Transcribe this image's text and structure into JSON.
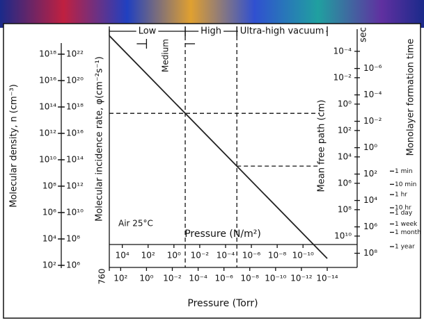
{
  "chart_data": {
    "type": "line",
    "annotation": "Air 25°C",
    "x": [
      760,
      1e-14
    ],
    "values": [
      2.5e+19,
      330
    ],
    "color": "#222222",
    "xlabel": "Pressure (Torr)",
    "xlim": [
      760,
      1e-14
    ],
    "xticks": [
      760,
      {
        "value": 100,
        "label": "10²"
      },
      {
        "value": 1,
        "label": "10⁰"
      },
      {
        "value": 0.01,
        "label": "10⁻²"
      },
      {
        "value": 0.0001,
        "label": "10⁻⁴"
      },
      {
        "value": 1e-06,
        "label": "10⁻⁶"
      },
      {
        "value": 1e-08,
        "label": "10⁻⁸"
      },
      {
        "value": 1e-10,
        "label": "10⁻¹⁰"
      },
      {
        "value": 1e-12,
        "label": "10⁻¹²"
      },
      {
        "value": 1e-14,
        "label": "10⁻¹⁴"
      }
    ],
    "x2label": "Pressure (N/m²)",
    "x2lim": [
      101325,
      1.33e-12
    ],
    "x2ticks": [
      {
        "value": 10000.0,
        "label": "10⁴"
      },
      {
        "value": 100,
        "label": "10²"
      },
      {
        "value": 1,
        "label": "10⁰"
      },
      {
        "value": 0.01,
        "label": "10⁻²"
      },
      {
        "value": 0.0001,
        "label": "10⁻⁴"
      },
      {
        "value": 1e-06,
        "label": "10⁻⁶"
      },
      {
        "value": 1e-08,
        "label": "10⁻⁸"
      },
      {
        "value": 1e-10,
        "label": "10⁻¹⁰"
      }
    ],
    "ylabel": "Molecular density, n (cm⁻³)",
    "ylim": [
      100,
      1e+20
    ],
    "yticks": [
      {
        "value": 100,
        "label": "10²"
      },
      {
        "value": 10000.0,
        "label": "10⁴"
      },
      {
        "value": 1000000.0,
        "label": "10⁶"
      },
      {
        "value": 100000000.0,
        "label": "10⁸"
      },
      {
        "value": 10000000000.0,
        "label": "10¹⁰"
      },
      {
        "value": 1000000000000.0,
        "label": "10¹²"
      },
      {
        "value": 100000000000000.0,
        "label": "10¹⁴"
      },
      {
        "value": 1e+16,
        "label": "10¹⁶"
      },
      {
        "value": 1e+18,
        "label": "10¹⁸"
      }
    ],
    "y_axes": [
      {
        "label": "Molecular incidence rate, φ(cm⁻²s⁻¹)",
        "lim": [
          1000000.0,
          1e+24
        ],
        "ticks": [
          {
            "value": 1000000.0,
            "label": "10⁶"
          },
          {
            "value": 100000000.0,
            "label": "10⁸"
          },
          {
            "value": 10000000000.0,
            "label": "10¹⁰"
          },
          {
            "value": 1000000000000.0,
            "label": "10¹²"
          },
          {
            "value": 100000000000000.0,
            "label": "10¹⁴"
          },
          {
            "value": 1e+16,
            "label": "10¹⁶"
          },
          {
            "value": 1e+18,
            "label": "10¹⁸"
          },
          {
            "value": 1e+20,
            "label": "10²⁰"
          },
          {
            "value": 1e+22,
            "label": "10²²"
          }
        ]
      },
      {
        "label": "Mean free path (cm)",
        "lim": [
          1650000000000.0,
          1.65e-06
        ],
        "ticks": [
          {
            "value": 10000000000.0,
            "label": "10¹⁰"
          },
          {
            "value": 100000000.0,
            "label": "10⁸"
          },
          {
            "value": 1000000.0,
            "label": "10⁶"
          },
          {
            "value": 10000.0,
            "label": "10⁴"
          },
          {
            "value": 100,
            "label": "10²"
          },
          {
            "value": 1,
            "label": "10⁰"
          },
          {
            "value": 0.01,
            "label": "10⁻²"
          },
          {
            "value": 0.0001,
            "label": "10⁻⁴"
          }
        ]
      },
      {
        "label": "Monolayer formation time",
        "unit": "sec",
        "lim": [
          825000000.0,
          8.25e-10
        ],
        "ticks": [
          {
            "value": 100000000.0,
            "label": "10⁸"
          },
          {
            "value": 1000000.0,
            "label": "10⁶"
          },
          {
            "value": 10000.0,
            "label": "10⁴"
          },
          {
            "value": 100,
            "label": "10²"
          },
          {
            "value": 1,
            "label": "10⁰"
          },
          {
            "value": 0.01,
            "label": "10⁻²"
          },
          {
            "value": 0.0001,
            "label": "10⁻⁴"
          },
          {
            "value": 1e-06,
            "label": "10⁻⁶"
          }
        ],
        "named_ticks": [
          {
            "value": 60,
            "label": "1 min"
          },
          {
            "value": 600,
            "label": "10 min"
          },
          {
            "value": 3600,
            "label": "1 hr"
          },
          {
            "value": 36000,
            "label": "10 hr"
          },
          {
            "value": 86400,
            "label": "1 day"
          },
          {
            "value": 604800,
            "label": "1 week"
          },
          {
            "value": 2600000,
            "label": "1 month"
          },
          {
            "value": 31500000,
            "label": "1 year"
          }
        ]
      }
    ],
    "regimes": [
      {
        "name": "Low",
        "from": 760,
        "to": 0.001
      },
      {
        "name": "Medium",
        "from": 1,
        "to": 0.001
      },
      {
        "name": "High",
        "from": 0.001,
        "to": 1e-07
      },
      {
        "name": "Ultra-high vacuum",
        "from": 1e-07,
        "to": 1e-14
      }
    ]
  }
}
